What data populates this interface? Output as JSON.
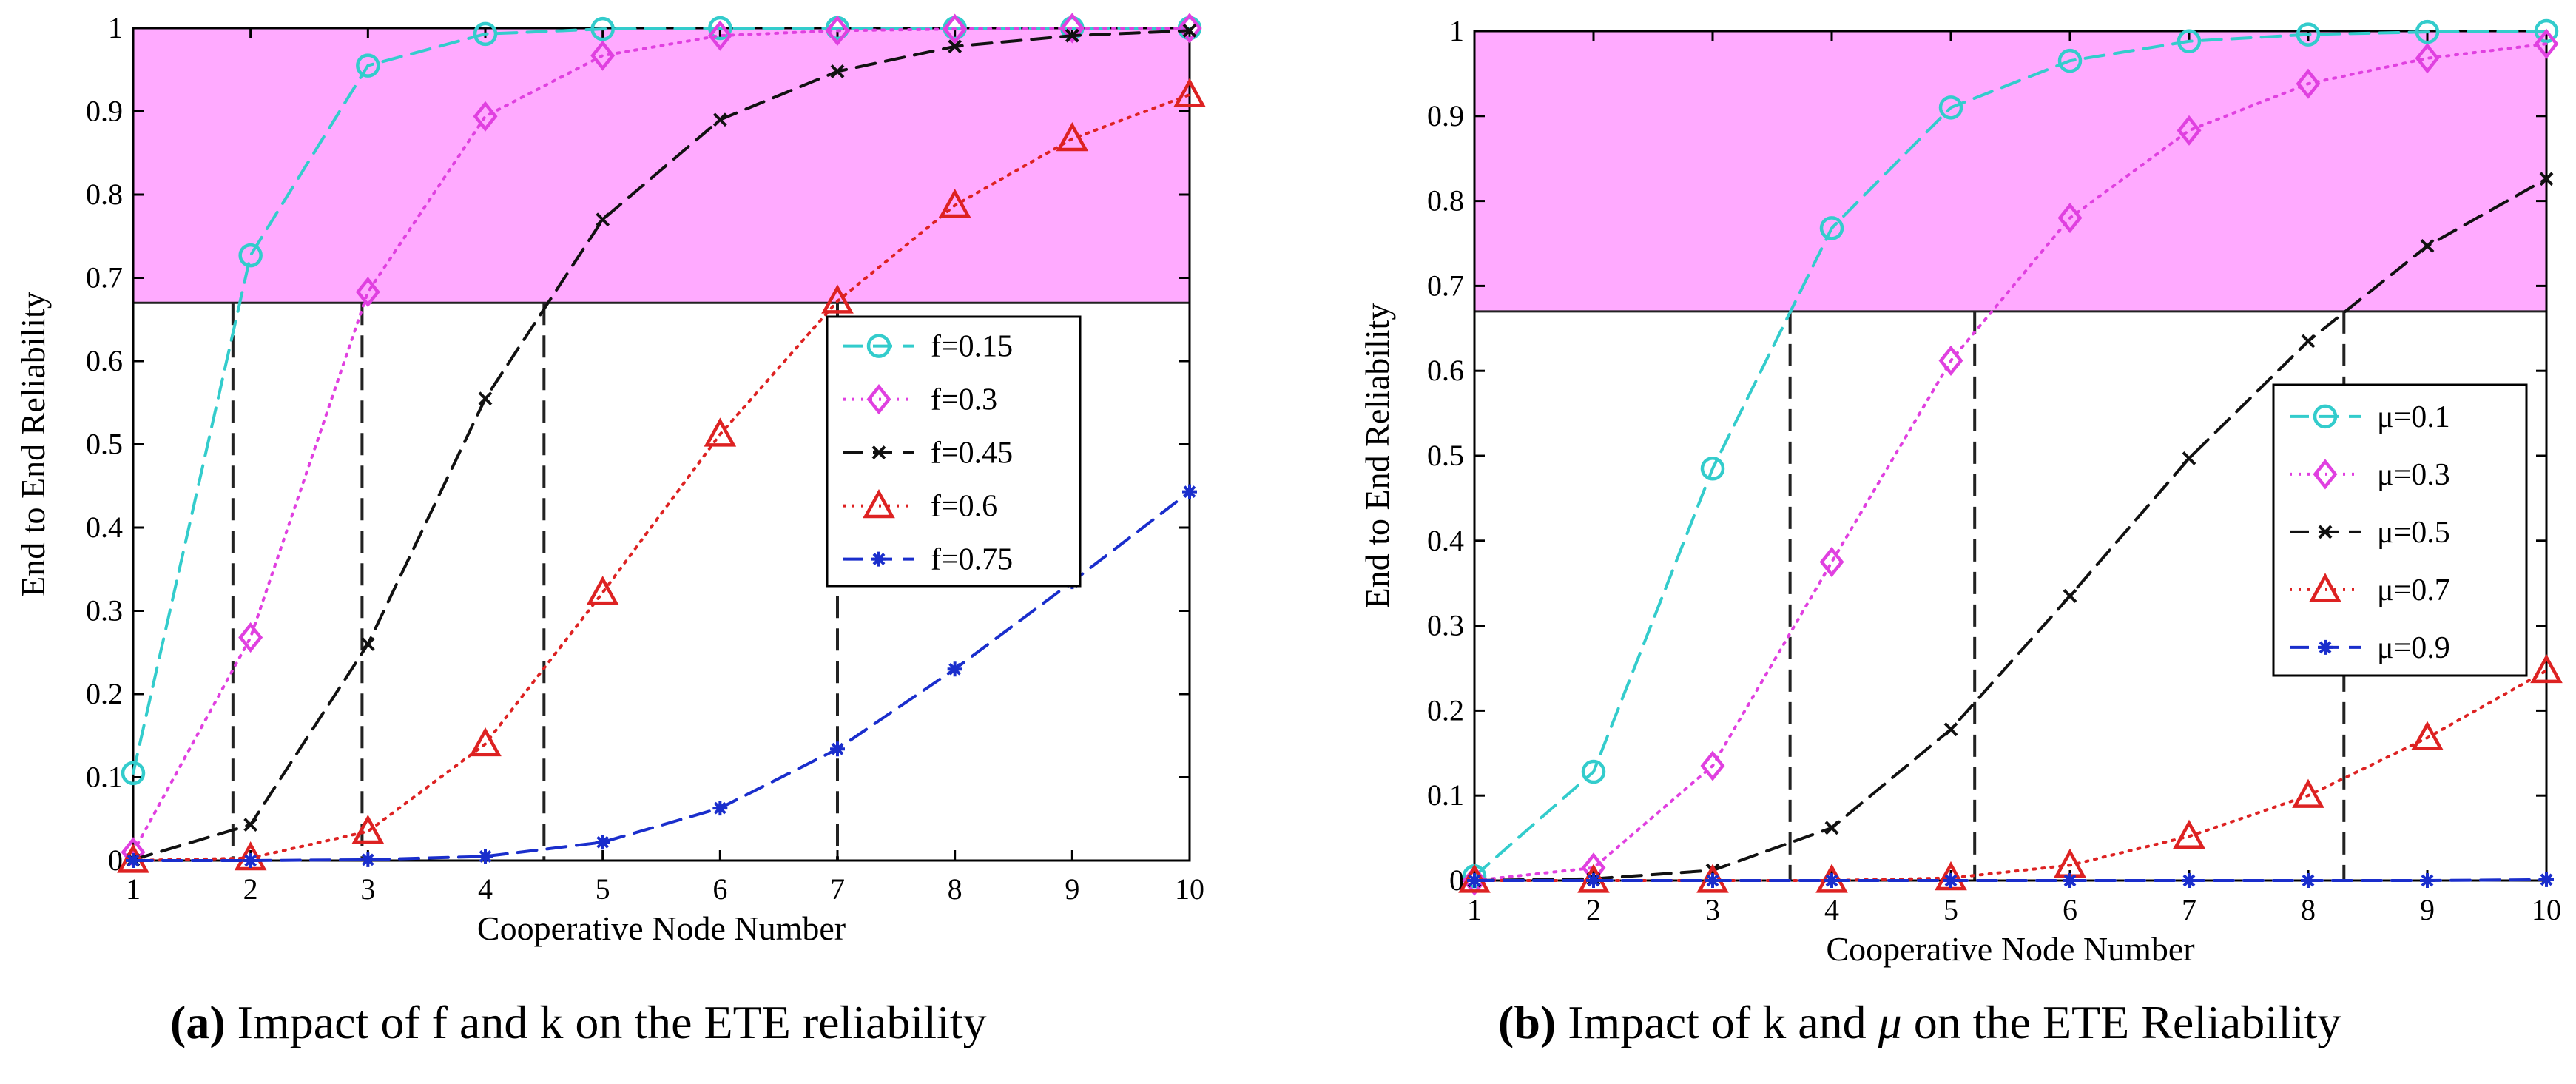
{
  "chart_data": [
    {
      "type": "line",
      "xlabel": "Cooperative Node Number",
      "ylabel": "End to End Reliability",
      "xlim": [
        1,
        10
      ],
      "ylim": [
        0,
        1
      ],
      "x": [
        1,
        2,
        3,
        4,
        5,
        6,
        7,
        8,
        9,
        10
      ],
      "xticks": [
        "1",
        "2",
        "3",
        "4",
        "5",
        "6",
        "7",
        "8",
        "9",
        "10"
      ],
      "yticks": [
        "0",
        "0.1",
        "0.2",
        "0.3",
        "0.4",
        "0.5",
        "0.6",
        "0.7",
        "0.8",
        "0.9",
        "1"
      ],
      "grid": false,
      "legend_position": "center-right",
      "threshold": 0.67,
      "shaded_region": [
        0.67,
        1
      ],
      "shade_color": "#ffaaff",
      "drop_lines_x": [
        1.85,
        2.95,
        4.5,
        7.0
      ],
      "series": [
        {
          "name": "f=0.15",
          "color": "#33cccc",
          "marker": "circle",
          "linestyle": "dashed",
          "values": [
            0.105,
            0.727,
            0.955,
            0.993,
            0.999,
            1.0,
            1.0,
            1.0,
            1.0,
            1.0
          ]
        },
        {
          "name": "f=0.3",
          "color": "#e040e0",
          "marker": "diamond",
          "linestyle": "dotted",
          "values": [
            0.01,
            0.268,
            0.683,
            0.894,
            0.967,
            0.991,
            0.997,
            0.999,
            1.0,
            1.0
          ]
        },
        {
          "name": "f=0.45",
          "color": "#111111",
          "marker": "x",
          "linestyle": "dashed",
          "values": [
            0.001,
            0.043,
            0.26,
            0.555,
            0.77,
            0.89,
            0.948,
            0.978,
            0.991,
            0.997
          ]
        },
        {
          "name": "f=0.6",
          "color": "#dd2222",
          "marker": "triangle",
          "linestyle": "dotted",
          "values": [
            0.0,
            0.003,
            0.035,
            0.14,
            0.322,
            0.512,
            0.672,
            0.787,
            0.867,
            0.92
          ]
        },
        {
          "name": "f=0.75",
          "color": "#1a2ecc",
          "marker": "star",
          "linestyle": "dashed",
          "values": [
            0.0,
            0.0,
            0.001,
            0.005,
            0.022,
            0.063,
            0.134,
            0.23,
            0.335,
            0.443
          ]
        }
      ]
    },
    {
      "type": "line",
      "xlabel": "Cooperative Node Number",
      "ylabel": "End to End Reliability",
      "xlim": [
        1,
        10
      ],
      "ylim": [
        0,
        1
      ],
      "x": [
        1,
        2,
        3,
        4,
        5,
        6,
        7,
        8,
        9,
        10
      ],
      "xticks": [
        "1",
        "2",
        "3",
        "4",
        "5",
        "6",
        "7",
        "8",
        "9",
        "10"
      ],
      "yticks": [
        "0",
        "0.1",
        "0.2",
        "0.3",
        "0.4",
        "0.5",
        "0.6",
        "0.7",
        "0.8",
        "0.9",
        "1"
      ],
      "grid": false,
      "legend_position": "center-right",
      "threshold": 0.67,
      "shaded_region": [
        0.67,
        1
      ],
      "shade_color": "#ffaaff",
      "drop_lines_x": [
        3.65,
        5.2,
        8.3
      ],
      "series": [
        {
          "name": "μ=0.1",
          "color": "#33cccc",
          "marker": "circle",
          "linestyle": "dashed",
          "values": [
            0.005,
            0.128,
            0.485,
            0.768,
            0.91,
            0.965,
            0.988,
            0.996,
            0.999,
            1.0
          ]
        },
        {
          "name": "μ=0.3",
          "color": "#e040e0",
          "marker": "diamond",
          "linestyle": "dotted",
          "values": [
            0.0,
            0.015,
            0.135,
            0.375,
            0.612,
            0.78,
            0.883,
            0.938,
            0.968,
            0.985
          ]
        },
        {
          "name": "μ=0.5",
          "color": "#111111",
          "marker": "x",
          "linestyle": "dashed",
          "values": [
            0.0,
            0.002,
            0.012,
            0.062,
            0.178,
            0.335,
            0.497,
            0.635,
            0.747,
            0.826
          ]
        },
        {
          "name": "μ=0.7",
          "color": "#dd2222",
          "marker": "triangle",
          "linestyle": "dotted",
          "values": [
            0.0,
            0.0,
            0.0,
            0.0,
            0.003,
            0.018,
            0.052,
            0.1,
            0.168,
            0.247
          ]
        },
        {
          "name": "μ=0.9",
          "color": "#1a2ecc",
          "marker": "star",
          "linestyle": "dashed",
          "values": [
            0.0,
            0.0,
            0.0,
            0.0,
            0.0,
            0.0,
            0.0,
            0.0,
            0.0,
            0.001
          ]
        }
      ]
    }
  ],
  "captions": [
    {
      "label": "(a)",
      "text": "Impact of f and k on the ETE reliability"
    },
    {
      "label": "(b)",
      "text_before": "Impact of k and",
      "symbol": "μ",
      "text_after": "on the ETE Reliability"
    }
  ]
}
